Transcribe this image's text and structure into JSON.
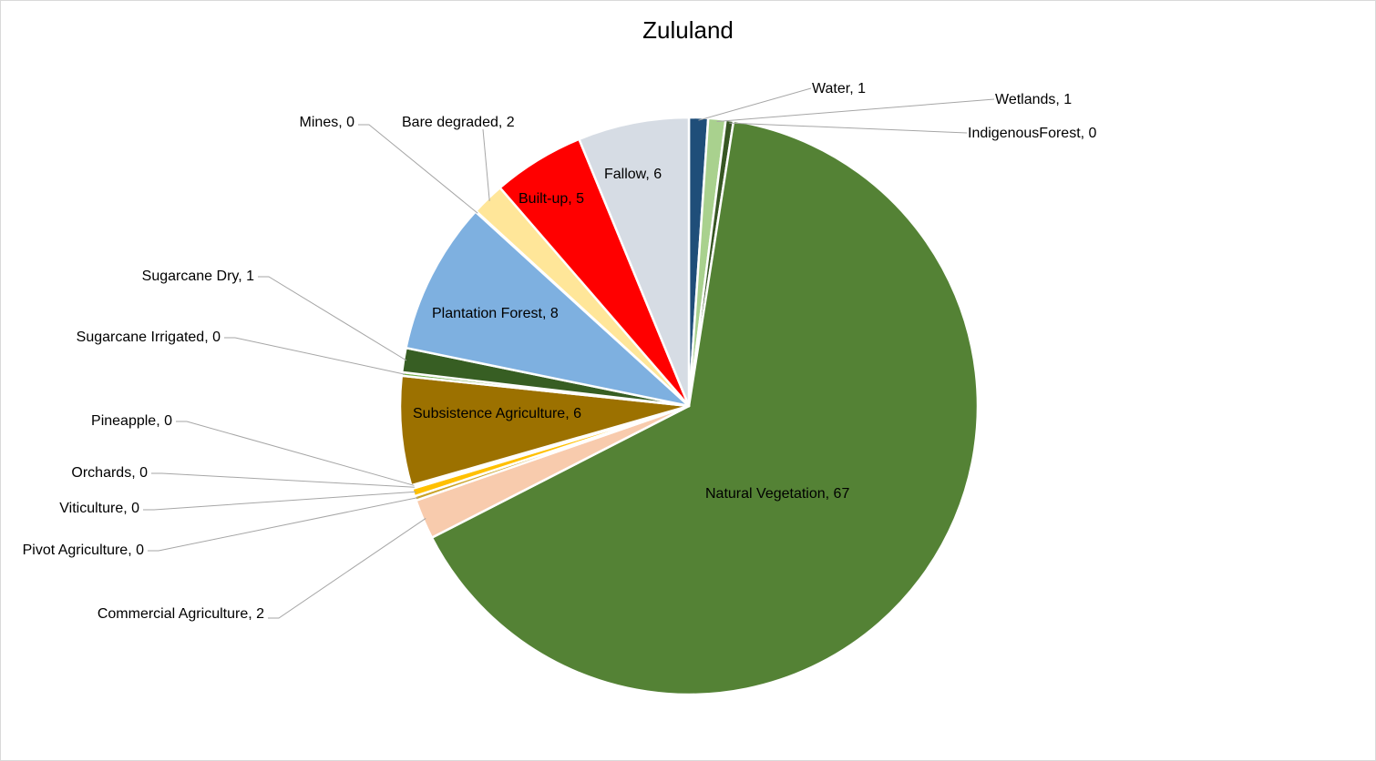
{
  "chart_data": {
    "type": "pie",
    "title": "Zululand",
    "start_angle_deg": 0,
    "clockwise": true,
    "slices": [
      {
        "label": "Water",
        "value": 1,
        "display": "Water, 1",
        "color": "#1f4e79"
      },
      {
        "label": "Wetlands",
        "value": 1,
        "display": "Wetlands, 1",
        "color": "#a9d18e"
      },
      {
        "label": "IndigenousForest",
        "value": 0,
        "display": "IndigenousForest, 0",
        "color": "#375623"
      },
      {
        "label": "Natural Vegetation",
        "value": 67,
        "display": "Natural Vegetation, 67",
        "color": "#548235"
      },
      {
        "label": "Commercial Agriculture",
        "value": 2,
        "display": "Commercial Agriculture, 2",
        "color": "#f8cbad"
      },
      {
        "label": "Pivot  Agriculture",
        "value": 0,
        "display": "Pivot  Agriculture, 0",
        "color": "#c9a227"
      },
      {
        "label": "Viticulture",
        "value": 0,
        "display": "Viticulture, 0",
        "color": "#ffc000"
      },
      {
        "label": "Orchards",
        "value": 0,
        "display": "Orchards, 0",
        "color": "#ffd966"
      },
      {
        "label": "Pineapple",
        "value": 0,
        "display": "Pineapple, 0",
        "color": "#bf9000"
      },
      {
        "label": "Subsistence Agriculture",
        "value": 6,
        "display": "Subsistence Agriculture, 6",
        "color": "#9c7100"
      },
      {
        "label": "Sugarcane Irrigated",
        "value": 0,
        "display": "Sugarcane Irrigated, 0",
        "color": "#70ad47"
      },
      {
        "label": "Sugarcane Dry",
        "value": 1,
        "display": "Sugarcane Dry, 1",
        "color": "#375e23"
      },
      {
        "label": "Plantation Forest",
        "value": 8,
        "display": "Plantation Forest, 8",
        "color": "#7eb0e0"
      },
      {
        "label": "Mines",
        "value": 0,
        "display": "Mines, 0",
        "color": "#7f7f7f"
      },
      {
        "label": "Bare degraded",
        "value": 2,
        "display": "Bare degraded, 2",
        "color": "#ffe699"
      },
      {
        "label": "Built-up",
        "value": 5,
        "display": "Built-up, 5",
        "color": "#ff0000"
      },
      {
        "label": "Fallow",
        "value": 6,
        "display": "Fallow, 6",
        "color": "#d6dce4"
      }
    ],
    "leader_line_color": "#a6a6a6",
    "slice_border_color": "#ffffff"
  }
}
